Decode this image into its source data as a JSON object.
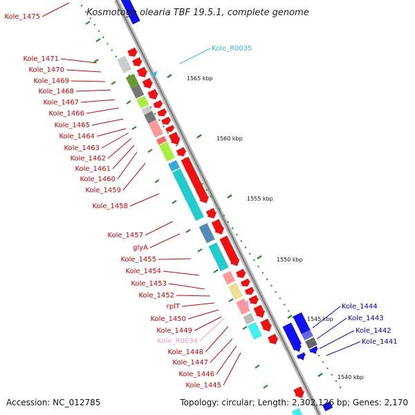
{
  "title": "Kosmotoga olearia TBF 19.5.1, complete genome",
  "footer": {
    "accession": "Accession: NC_012785",
    "stats": "Topology: circular; Length: 2,302,126 bp; Genes: 2,170"
  },
  "colors": {
    "gene_label": "#cc0000",
    "rna_label": "#33bbdd",
    "blue_label": "#0000cc",
    "pink_label": "#ee99cc",
    "backbone": "#999999",
    "tick_mark": "#228822"
  },
  "ticks": [
    "1565 kbp",
    "1560 kbp",
    "1555 kbp",
    "1550 kbp",
    "1545 kbp",
    "1540 kbp"
  ],
  "left_labels": [
    {
      "text": "Kole_1475",
      "color": "red"
    },
    {
      "text": "Kole_1471",
      "color": "red"
    },
    {
      "text": "Kole_1470",
      "color": "red"
    },
    {
      "text": "Kole_1469",
      "color": "red"
    },
    {
      "text": "Kole_1468",
      "color": "red"
    },
    {
      "text": "Kole_1467",
      "color": "red"
    },
    {
      "text": "Kole_1466",
      "color": "red"
    },
    {
      "text": "Kole_1465",
      "color": "red"
    },
    {
      "text": "Kole_1464",
      "color": "red"
    },
    {
      "text": "Kole_1463",
      "color": "red"
    },
    {
      "text": "Kole_1462",
      "color": "red"
    },
    {
      "text": "Kole_1461",
      "color": "red"
    },
    {
      "text": "Kole_1460",
      "color": "red"
    },
    {
      "text": "Kole_1459",
      "color": "red"
    },
    {
      "text": "Kole_1458",
      "color": "red"
    },
    {
      "text": "Kole_1457",
      "color": "red"
    },
    {
      "text": "glyA",
      "color": "red"
    },
    {
      "text": "Kole_1455",
      "color": "red"
    },
    {
      "text": "Kole_1454",
      "color": "red"
    },
    {
      "text": "Kole_1453",
      "color": "red"
    },
    {
      "text": "Kole_1452",
      "color": "red"
    },
    {
      "text": "rplT",
      "color": "red"
    },
    {
      "text": "Kole_1450",
      "color": "red"
    },
    {
      "text": "Kole_1449",
      "color": "red"
    },
    {
      "text": "Kole_R0034",
      "color": "pink"
    },
    {
      "text": "Kole_1448",
      "color": "red"
    },
    {
      "text": "Kole_1447",
      "color": "red"
    },
    {
      "text": "Kole_1446",
      "color": "red"
    },
    {
      "text": "Kole_1445",
      "color": "red"
    }
  ],
  "right_labels": [
    {
      "text": "Kole_R0035",
      "color": "cyan"
    },
    {
      "text": "Kole_1444",
      "color": "blue"
    },
    {
      "text": "Kole_1443",
      "color": "blue"
    },
    {
      "text": "Kole_1442",
      "color": "blue"
    },
    {
      "text": "Kole_1441",
      "color": "blue"
    }
  ]
}
